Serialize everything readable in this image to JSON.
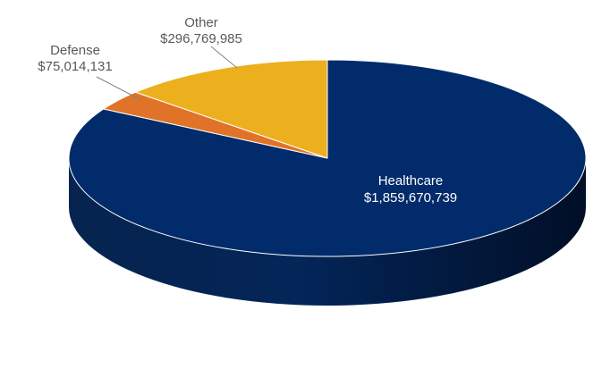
{
  "chart_data": {
    "type": "pie",
    "style": "3d",
    "slices": [
      {
        "label": "Healthcare",
        "value_label": "$1,859,670,739",
        "value": 1859670739,
        "color": "#012b6b"
      },
      {
        "label": "Defense",
        "value_label": "$75,014,131",
        "value": 75014131,
        "color": "#e07327"
      },
      {
        "label": "Other",
        "value_label": "$296,769,985",
        "value": 296769985,
        "color": "#ecb01e"
      }
    ],
    "start_angle": "12 o'clock",
    "direction": "clockwise",
    "legend": "none"
  }
}
